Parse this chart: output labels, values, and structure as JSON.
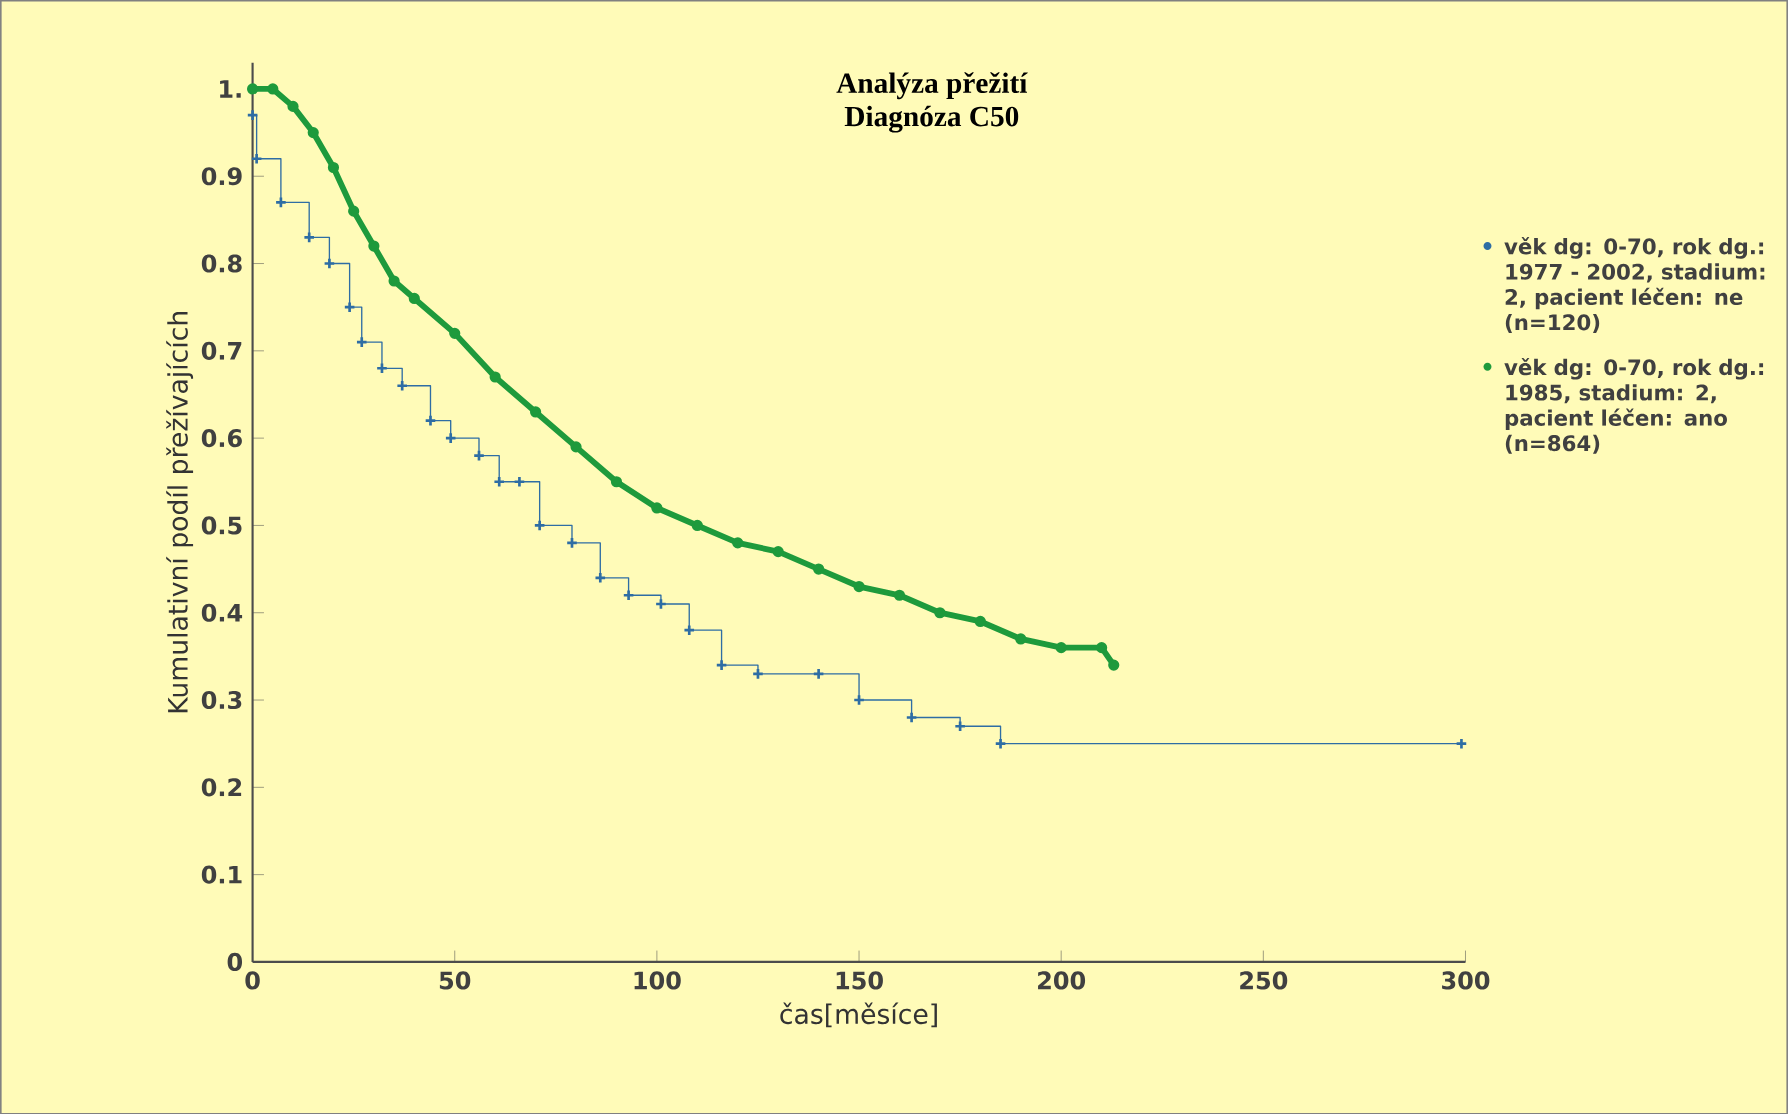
{
  "chart_data": {
    "type": "line",
    "title": "Analýza přežití",
    "subtitle": "Diagnóza C50",
    "xlabel": "čas[měsíce]",
    "ylabel": "Kumulativní podíl přežívajících",
    "xlim": [
      0,
      300
    ],
    "ylim": [
      0,
      1.03
    ],
    "xticks": [
      0,
      50,
      100,
      150,
      200,
      250,
      300
    ],
    "yticks": [
      0,
      0.1,
      0.2,
      0.3,
      0.4,
      0.5,
      0.6,
      0.7,
      0.8,
      0.9,
      {
        "value": 1,
        "label": "1."
      }
    ],
    "legend": "right",
    "grid": false,
    "series": [
      {
        "name": "věk dg: 0-70, rok dg.: 1977 - 2002, stadium: 2, pacient léčen: ne (n=120)",
        "type": "step",
        "color": "#2e6da4",
        "marker": "cross",
        "x": [
          0,
          1,
          7,
          14,
          19,
          24,
          27,
          32,
          37,
          44,
          49,
          56,
          61,
          66,
          71,
          79,
          86,
          93,
          101,
          108,
          116,
          125,
          140,
          150,
          163,
          175,
          185,
          299
        ],
        "values": [
          0.97,
          0.92,
          0.87,
          0.83,
          0.8,
          0.75,
          0.71,
          0.68,
          0.66,
          0.62,
          0.6,
          0.58,
          0.55,
          0.55,
          0.5,
          0.48,
          0.44,
          0.42,
          0.41,
          0.38,
          0.34,
          0.33,
          0.33,
          0.3,
          0.28,
          0.27,
          0.25,
          0.25
        ]
      },
      {
        "name": "věk dg: 0-70, rok dg.: 1985, stadium: 2, pacient léčen: ano (n=864)",
        "color": "#1e9a3c",
        "marker": "circle",
        "x": [
          0,
          5,
          10,
          15,
          20,
          25,
          30,
          35,
          40,
          50,
          60,
          70,
          80,
          90,
          100,
          110,
          120,
          130,
          140,
          150,
          160,
          170,
          180,
          190,
          200,
          210,
          213
        ],
        "values": [
          1.0,
          1.0,
          0.98,
          0.95,
          0.91,
          0.86,
          0.82,
          0.78,
          0.76,
          0.72,
          0.67,
          0.63,
          0.59,
          0.55,
          0.52,
          0.5,
          0.48,
          0.47,
          0.45,
          0.43,
          0.42,
          0.4,
          0.39,
          0.37,
          0.36,
          0.36,
          0.34
        ]
      }
    ]
  }
}
